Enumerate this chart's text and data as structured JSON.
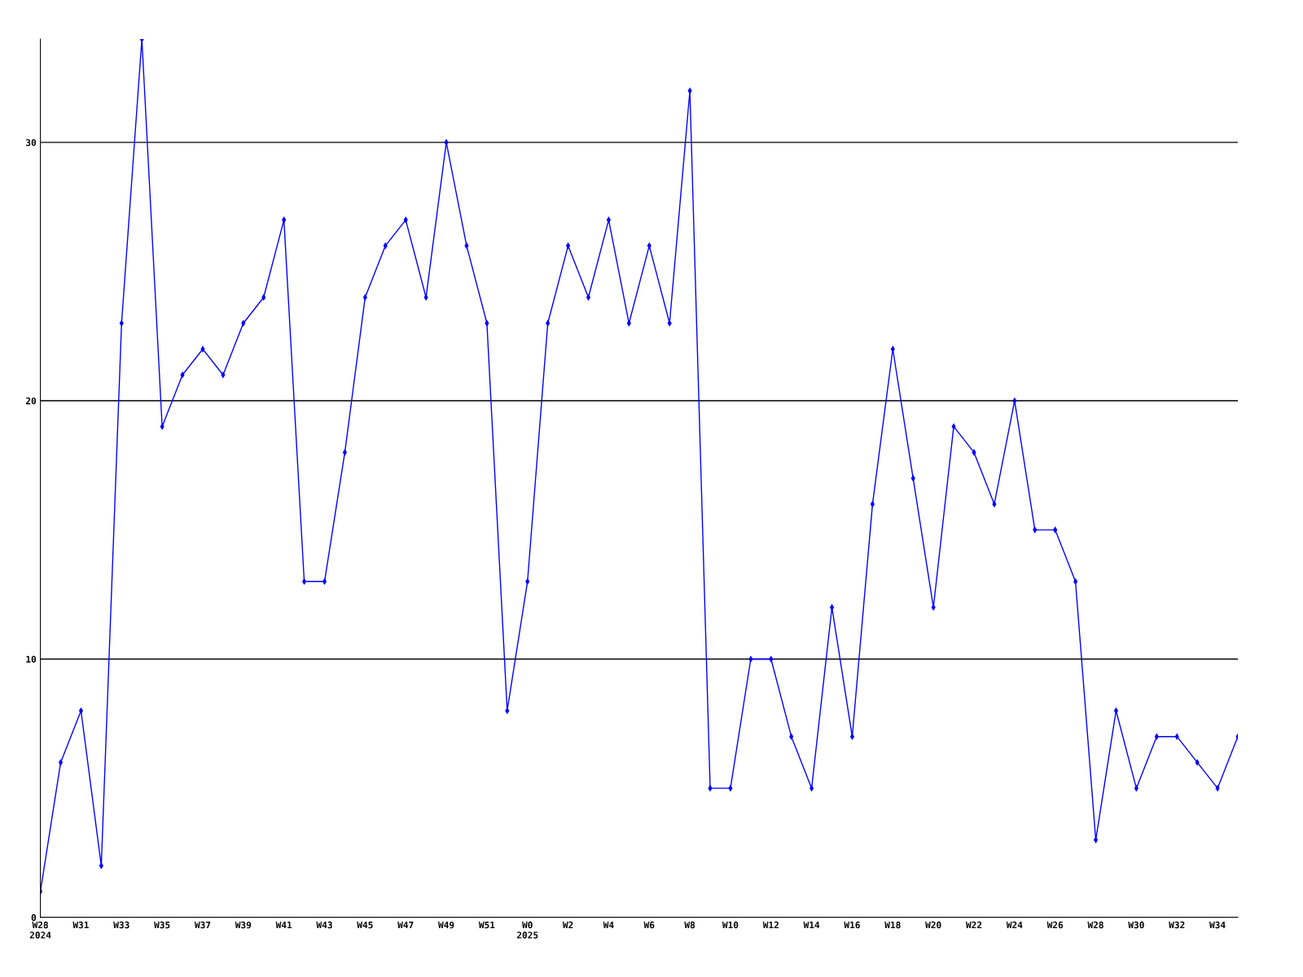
{
  "chart_data": {
    "type": "line",
    "categories": [
      "W28\n2024",
      null,
      "W31",
      null,
      "W33",
      null,
      "W35",
      null,
      "W37",
      null,
      "W39",
      null,
      "W41",
      null,
      "W43",
      null,
      "W45",
      null,
      "W47",
      null,
      "W49",
      null,
      "W51",
      null,
      "W0\n2025",
      null,
      "W2",
      null,
      "W4",
      null,
      "W6",
      null,
      "W8",
      null,
      "W10",
      null,
      "W12",
      null,
      "W14",
      null,
      "W16",
      null,
      "W18",
      null,
      "W20",
      null,
      "W22",
      null,
      "W24",
      null,
      "W26",
      null,
      "W28",
      null,
      "W30",
      null,
      "W32",
      null,
      "W34",
      null
    ],
    "series": [
      {
        "color": "#0000ff",
        "values": [
          1,
          6,
          8,
          2,
          23,
          34,
          19,
          21,
          22,
          21,
          23,
          24,
          27,
          13,
          13,
          18,
          24,
          26,
          27,
          24,
          30,
          26,
          23,
          8,
          13,
          23,
          26,
          24,
          27,
          23,
          26,
          23,
          32,
          5,
          5,
          10,
          10,
          7,
          5,
          12,
          7,
          16,
          22,
          17,
          12,
          19,
          18,
          16,
          20,
          15,
          15,
          13,
          3,
          8,
          5,
          7,
          7,
          6,
          5,
          7
        ]
      }
    ],
    "ylim": [
      0,
      34
    ],
    "yticks": [
      0,
      10,
      20,
      30
    ],
    "grid": "y",
    "marker": "diamond",
    "line_style": "solid",
    "legend": false
  }
}
